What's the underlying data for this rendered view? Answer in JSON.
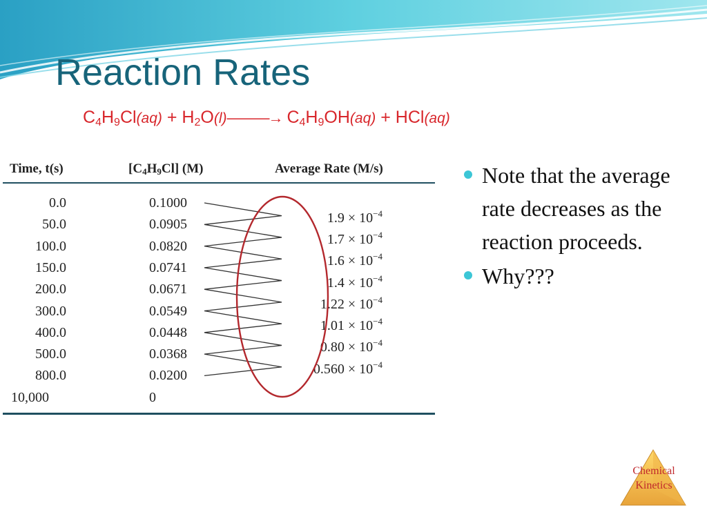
{
  "slide": {
    "title": "Reaction Rates",
    "equation": {
      "r1": "C",
      "r1_s1": "4",
      "r1_m": "H",
      "r1_s2": "9",
      "r1_e": "Cl",
      "r1_state": "(aq)",
      "plus1": "+",
      "r2": "H",
      "r2_s": "2",
      "r2_e": "O",
      "r2_state": "(l)",
      "arrow": "———→",
      "p1": "C",
      "p1_s1": "4",
      "p1_m": "H",
      "p1_s2": "9",
      "p1_e": "OH",
      "p1_state": "(aq)",
      "plus2": "+",
      "p2": "HCl",
      "p2_state": "(aq)"
    },
    "table": {
      "headers": {
        "time": "Time, t(s)",
        "conc_a": "[C",
        "conc_s1": "4",
        "conc_b": "H",
        "conc_s2": "9",
        "conc_c": "Cl] (M)",
        "rate": "Average Rate (M/s)"
      },
      "times": [
        "0.0",
        "50.0",
        "100.0",
        "150.0",
        "200.0",
        "300.0",
        "400.0",
        "500.0",
        "800.0",
        "10,000"
      ],
      "concentrations": [
        "0.1000",
        "0.0905",
        "0.0820",
        "0.0741",
        "0.0671",
        "0.0549",
        "0.0448",
        "0.0368",
        "0.0200",
        "0"
      ],
      "rates": [
        {
          "m": "1.9 × 10",
          "e": "−4"
        },
        {
          "m": "1.7 × 10",
          "e": "−4"
        },
        {
          "m": "1.6 × 10",
          "e": "−4"
        },
        {
          "m": "1.4 × 10",
          "e": "−4"
        },
        {
          "m": "1.22 × 10",
          "e": "−4"
        },
        {
          "m": "1.01 × 10",
          "e": "−4"
        },
        {
          "m": "0.80 × 10",
          "e": "−4"
        },
        {
          "m": "0.560 × 10",
          "e": "−4"
        }
      ]
    },
    "bullets": [
      "Note that the average rate decreases as the reaction proceeds.",
      "Why???"
    ],
    "logo": {
      "line1": "Chemical",
      "line2": "Kinetics"
    },
    "colors": {
      "title": "#17647a",
      "equation": "#d8262b",
      "bullet": "#3cc6d6",
      "oval": "#b3282d"
    }
  }
}
